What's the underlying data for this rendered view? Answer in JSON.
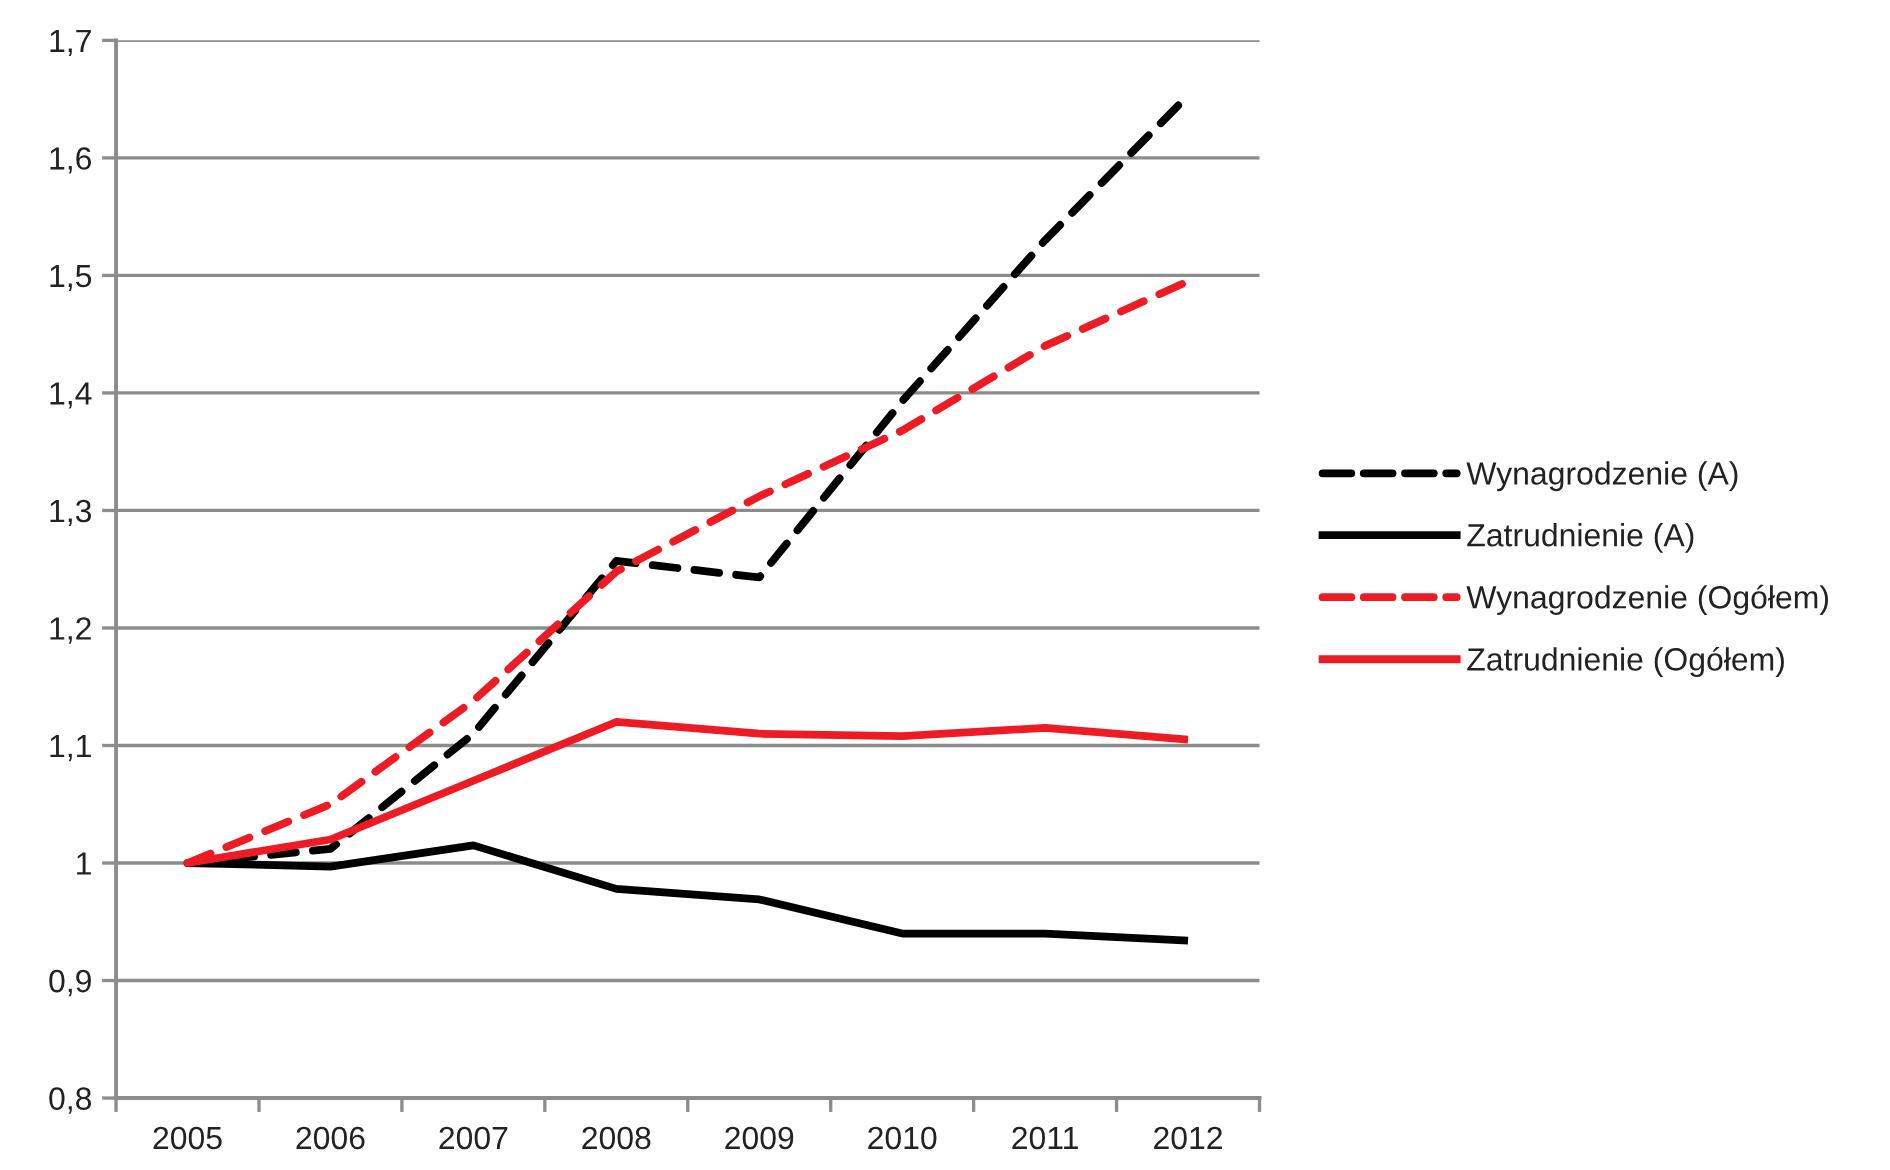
{
  "chart_data": {
    "type": "line",
    "categories": [
      "2005",
      "2006",
      "2007",
      "2008",
      "2009",
      "2010",
      "2011",
      "2012"
    ],
    "series": [
      {
        "name": "Wynagrodzenie (A)",
        "color": "#000000",
        "line_style": "dashed",
        "values": [
          1.0,
          1.012,
          1.11,
          1.257,
          1.243,
          1.393,
          1.53,
          1.653
        ]
      },
      {
        "name": "Zatrudnienie (A)",
        "color": "#000000",
        "line_style": "solid",
        "values": [
          1.0,
          0.997,
          1.015,
          0.978,
          0.969,
          0.94,
          0.94,
          0.934
        ]
      },
      {
        "name": "Wynagrodzenie (Ogółem)",
        "color": "#ed1c24",
        "line_style": "dashed",
        "values": [
          1.0,
          1.05,
          1.138,
          1.248,
          1.312,
          1.368,
          1.44,
          1.495
        ]
      },
      {
        "name": "Zatrudnienie (Ogółem)",
        "color": "#ed1c24",
        "line_style": "solid",
        "values": [
          1.0,
          1.02,
          1.07,
          1.12,
          1.11,
          1.108,
          1.115,
          1.105
        ]
      }
    ],
    "ylim": [
      0.8,
      1.7
    ],
    "yticks": [
      {
        "value": 0.8,
        "label": "0,8"
      },
      {
        "value": 0.9,
        "label": "0,9"
      },
      1,
      {
        "value": 1.1,
        "label": "1,1"
      },
      {
        "value": 1.2,
        "label": "1,2"
      },
      {
        "value": 1.3,
        "label": "1,3"
      },
      {
        "value": 1.4,
        "label": "1,4"
      },
      {
        "value": 1.5,
        "label": "1,5"
      },
      {
        "value": 1.6,
        "label": "1,6"
      },
      {
        "value": 1.7,
        "label": "1,7"
      }
    ],
    "grid": "y",
    "legend": "right",
    "marker": "none"
  }
}
